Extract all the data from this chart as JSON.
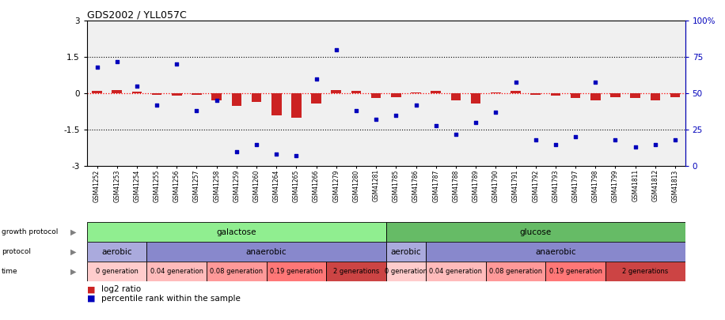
{
  "title": "GDS2002 / YLL057C",
  "samples": [
    "GSM41252",
    "GSM41253",
    "GSM41254",
    "GSM41255",
    "GSM41256",
    "GSM41257",
    "GSM41258",
    "GSM41259",
    "GSM41260",
    "GSM41264",
    "GSM41265",
    "GSM41266",
    "GSM41279",
    "GSM41280",
    "GSM41281",
    "GSM41785",
    "GSM41786",
    "GSM41787",
    "GSM41788",
    "GSM41789",
    "GSM41790",
    "GSM41791",
    "GSM41792",
    "GSM41793",
    "GSM41797",
    "GSM41798",
    "GSM41799",
    "GSM41811",
    "GSM41812",
    "GSM41813"
  ],
  "log2_ratio": [
    0.1,
    0.15,
    0.08,
    -0.05,
    -0.1,
    -0.05,
    -0.3,
    -0.5,
    -0.35,
    -0.9,
    -1.0,
    -0.4,
    0.15,
    0.1,
    -0.2,
    -0.15,
    0.05,
    0.1,
    -0.3,
    -0.4,
    0.05,
    0.1,
    -0.05,
    -0.1,
    -0.2,
    -0.3,
    -0.15,
    -0.2,
    -0.3,
    -0.15
  ],
  "percentile": [
    68,
    72,
    55,
    42,
    70,
    38,
    45,
    10,
    15,
    8,
    7,
    60,
    80,
    38,
    32,
    35,
    42,
    28,
    22,
    30,
    37,
    58,
    18,
    15,
    20,
    58,
    18,
    13,
    15,
    18
  ],
  "growth_protocol_groups": [
    {
      "label": "galactose",
      "start": 0,
      "end": 15,
      "color": "#90EE90"
    },
    {
      "label": "glucose",
      "start": 15,
      "end": 30,
      "color": "#66BB66"
    }
  ],
  "protocol_groups": [
    {
      "label": "aerobic",
      "start": 0,
      "end": 3,
      "color": "#AAAADD"
    },
    {
      "label": "anaerobic",
      "start": 3,
      "end": 15,
      "color": "#8888CC"
    },
    {
      "label": "aerobic",
      "start": 15,
      "end": 17,
      "color": "#AAAADD"
    },
    {
      "label": "anaerobic",
      "start": 17,
      "end": 30,
      "color": "#8888CC"
    }
  ],
  "time_groups": [
    {
      "label": "0 generation",
      "start": 0,
      "end": 3,
      "color": "#FFCCCC"
    },
    {
      "label": "0.04 generation",
      "start": 3,
      "end": 6,
      "color": "#FFBBBB"
    },
    {
      "label": "0.08 generation",
      "start": 6,
      "end": 9,
      "color": "#FF9999"
    },
    {
      "label": "0.19 generation",
      "start": 9,
      "end": 12,
      "color": "#FF7777"
    },
    {
      "label": "2 generations",
      "start": 12,
      "end": 15,
      "color": "#CC4444"
    },
    {
      "label": "0 generation",
      "start": 15,
      "end": 17,
      "color": "#FFCCCC"
    },
    {
      "label": "0.04 generation",
      "start": 17,
      "end": 20,
      "color": "#FFBBBB"
    },
    {
      "label": "0.08 generation",
      "start": 20,
      "end": 23,
      "color": "#FF9999"
    },
    {
      "label": "0.19 generation",
      "start": 23,
      "end": 26,
      "color": "#FF7777"
    },
    {
      "label": "2 generations",
      "start": 26,
      "end": 30,
      "color": "#CC4444"
    }
  ],
  "bar_color": "#CC2222",
  "dot_color": "#0000BB",
  "plot_bg_color": "#F0F0F0"
}
